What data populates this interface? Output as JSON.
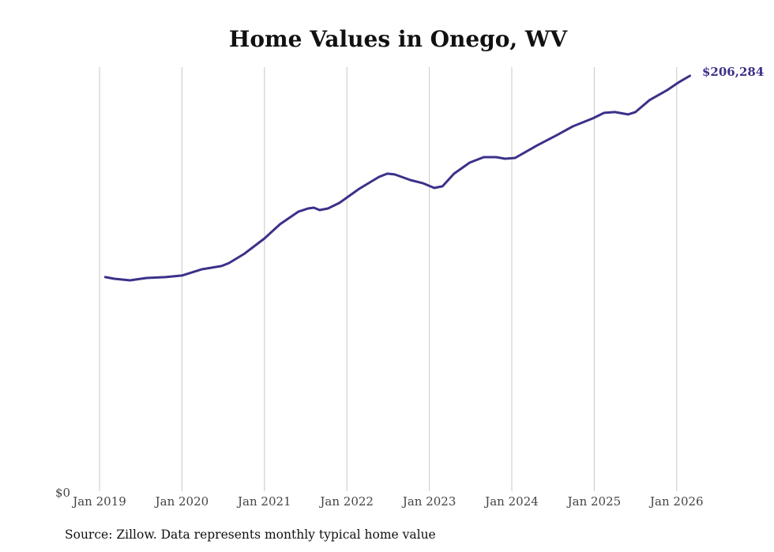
{
  "chart_data": {
    "type": "line",
    "title": "Home Values in Onego, WV",
    "xlabel": "",
    "ylabel": "",
    "x_ticks": [
      {
        "value": 2019,
        "label": "Jan 2019"
      },
      {
        "value": 2020,
        "label": "Jan 2020"
      },
      {
        "value": 2021,
        "label": "Jan 2021"
      },
      {
        "value": 2022,
        "label": "Jan 2022"
      },
      {
        "value": 2023,
        "label": "Jan 2023"
      },
      {
        "value": 2024,
        "label": "Jan 2024"
      },
      {
        "value": 2025,
        "label": "Jan 2025"
      },
      {
        "value": 2026,
        "label": "Jan 2026"
      }
    ],
    "y_tick_label": "$0",
    "xlim": [
      2019,
      2026.16
    ],
    "ylim": [
      0,
      206284
    ],
    "grid": "vertical",
    "end_label": "$206,284",
    "line_color": "#3b3189",
    "series": [
      {
        "name": "Typical home value",
        "points": [
          [
            2019.07,
            106300
          ],
          [
            2019.18,
            105500
          ],
          [
            2019.37,
            104700
          ],
          [
            2019.57,
            105900
          ],
          [
            2019.8,
            106300
          ],
          [
            2020.0,
            107100
          ],
          [
            2020.24,
            110200
          ],
          [
            2020.48,
            111800
          ],
          [
            2020.57,
            113300
          ],
          [
            2020.76,
            118000
          ],
          [
            2021.0,
            125500
          ],
          [
            2021.19,
            132600
          ],
          [
            2021.41,
            138800
          ],
          [
            2021.53,
            140400
          ],
          [
            2021.6,
            140800
          ],
          [
            2021.67,
            139600
          ],
          [
            2021.77,
            140400
          ],
          [
            2021.91,
            143200
          ],
          [
            2022.15,
            150200
          ],
          [
            2022.39,
            156100
          ],
          [
            2022.49,
            157700
          ],
          [
            2022.58,
            157300
          ],
          [
            2022.77,
            154500
          ],
          [
            2022.92,
            153000
          ],
          [
            2023.06,
            150600
          ],
          [
            2023.16,
            151400
          ],
          [
            2023.3,
            157700
          ],
          [
            2023.49,
            163200
          ],
          [
            2023.66,
            165900
          ],
          [
            2023.81,
            165900
          ],
          [
            2023.92,
            165100
          ],
          [
            2024.04,
            165500
          ],
          [
            2024.31,
            171800
          ],
          [
            2024.55,
            176900
          ],
          [
            2024.74,
            181200
          ],
          [
            2024.98,
            185100
          ],
          [
            2025.12,
            187900
          ],
          [
            2025.25,
            188300
          ],
          [
            2025.41,
            187100
          ],
          [
            2025.5,
            188300
          ],
          [
            2025.67,
            194200
          ],
          [
            2025.89,
            199300
          ],
          [
            2026.03,
            203200
          ],
          [
            2026.16,
            206284
          ]
        ]
      }
    ]
  },
  "source": "Source: Zillow. Data represents monthly typical home value"
}
